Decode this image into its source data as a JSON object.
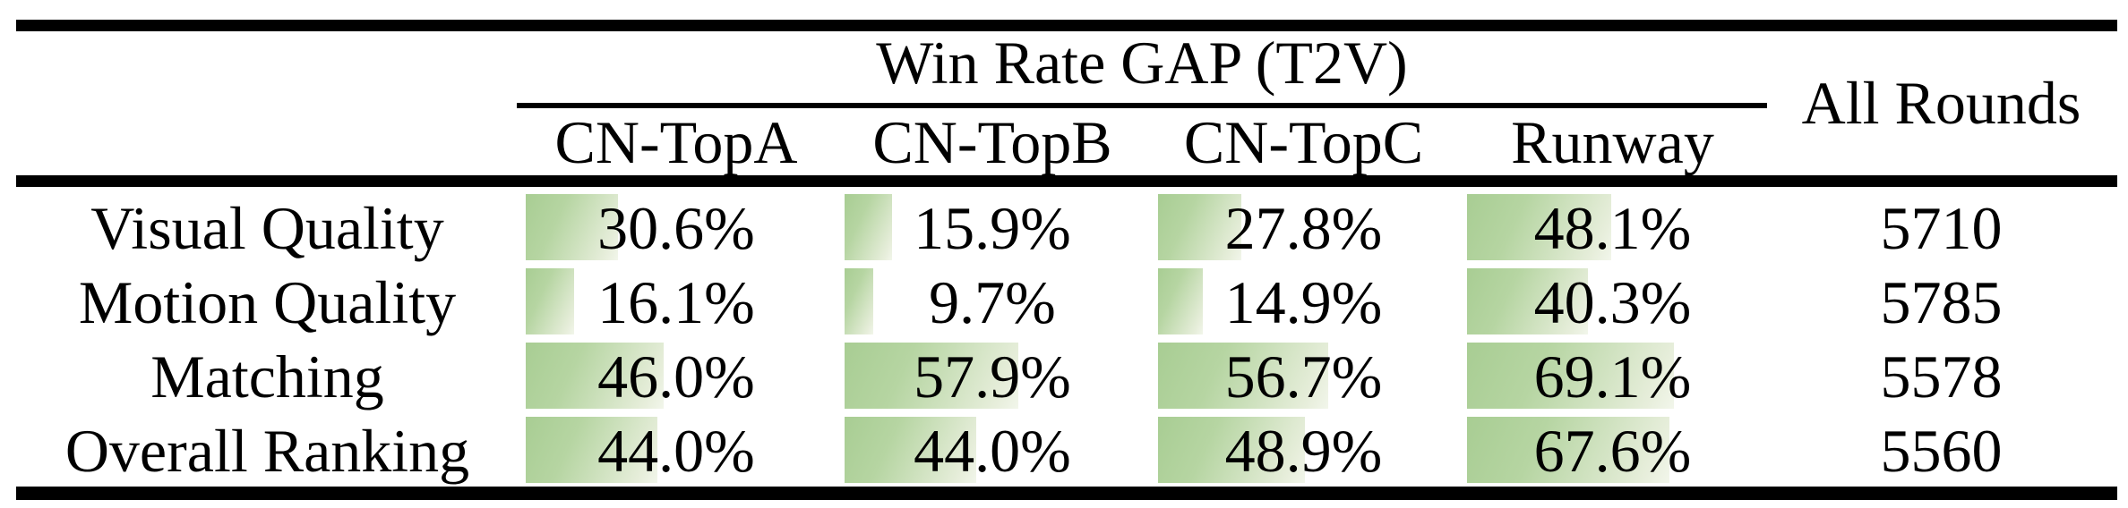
{
  "table": {
    "title": "Win Rate GAP (T2V)",
    "all_rounds_header": "All Rounds",
    "column_headers": [
      "CN-TopA",
      "CN-TopB",
      "CN-TopC",
      "Runway"
    ],
    "rows": [
      {
        "label": "Visual Quality",
        "cells": [
          {
            "text": "30.6%",
            "value": 30.6
          },
          {
            "text": "15.9%",
            "value": 15.9
          },
          {
            "text": "27.8%",
            "value": 27.8
          },
          {
            "text": "48.1%",
            "value": 48.1
          }
        ],
        "all_rounds": "5710"
      },
      {
        "label": "Motion Quality",
        "cells": [
          {
            "text": "16.1%",
            "value": 16.1
          },
          {
            "text": "9.7%",
            "value": 9.7
          },
          {
            "text": "14.9%",
            "value": 14.9
          },
          {
            "text": "40.3%",
            "value": 40.3
          }
        ],
        "all_rounds": "5785"
      },
      {
        "label": "Matching",
        "cells": [
          {
            "text": "46.0%",
            "value": 46.0
          },
          {
            "text": "57.9%",
            "value": 57.9
          },
          {
            "text": "56.7%",
            "value": 56.7
          },
          {
            "text": "69.1%",
            "value": 69.1
          }
        ],
        "all_rounds": "5578"
      },
      {
        "label": "Overall Ranking",
        "cells": [
          {
            "text": "44.0%",
            "value": 44.0
          },
          {
            "text": "44.0%",
            "value": 44.0
          },
          {
            "text": "48.9%",
            "value": 48.9
          },
          {
            "text": "67.6%",
            "value": 67.6
          }
        ],
        "all_rounds": "5560"
      }
    ]
  },
  "colors": {
    "bar_gradient_start": "#a8cd93",
    "bar_gradient_end": "#f2f6eb",
    "rule": "#000000",
    "text": "#000000",
    "background": "#ffffff"
  },
  "chart_data": {
    "type": "table",
    "title": "Win Rate GAP (T2V)",
    "row_categories": [
      "Visual Quality",
      "Motion Quality",
      "Matching",
      "Overall Ranking"
    ],
    "columns": [
      "CN-TopA",
      "CN-TopB",
      "CN-TopC",
      "Runway",
      "All Rounds"
    ],
    "series": [
      {
        "name": "CN-TopA",
        "values": [
          30.6,
          16.1,
          46.0,
          44.0
        ]
      },
      {
        "name": "CN-TopB",
        "values": [
          15.9,
          9.7,
          57.9,
          44.0
        ]
      },
      {
        "name": "CN-TopC",
        "values": [
          27.8,
          14.9,
          56.7,
          48.9
        ]
      },
      {
        "name": "Runway",
        "values": [
          48.1,
          40.3,
          69.1,
          67.6
        ]
      }
    ],
    "all_rounds": [
      5710,
      5785,
      5578,
      5560
    ],
    "unit": "percent",
    "bar_scale": "cell bars proportional to percent value, 100% ≈ full column width"
  }
}
